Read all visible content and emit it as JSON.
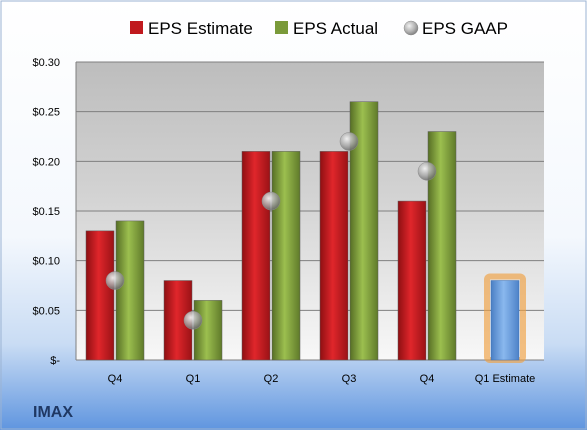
{
  "chart_data": {
    "type": "bar",
    "title": "",
    "xlabel": "",
    "ylabel": "",
    "categories": [
      "Q4",
      "Q1",
      "Q2",
      "Q3",
      "Q4",
      "Q1 Estimate"
    ],
    "series": [
      {
        "name": "EPS Estimate",
        "type": "bar",
        "color": "#c0191e",
        "values": [
          0.13,
          0.08,
          0.21,
          0.21,
          0.16,
          null
        ]
      },
      {
        "name": "EPS Actual",
        "type": "bar",
        "color": "#7a9a3a",
        "values": [
          0.14,
          0.06,
          0.21,
          0.26,
          0.23,
          null
        ]
      },
      {
        "name": "EPS GAAP",
        "type": "scatter",
        "color": "#b8b8b8",
        "values": [
          0.08,
          0.04,
          0.16,
          0.22,
          0.19,
          null
        ]
      },
      {
        "name": "",
        "type": "bar",
        "color": "#6fa0dc",
        "values": [
          null,
          null,
          null,
          null,
          null,
          0.08
        ]
      }
    ],
    "ylim": [
      0,
      0.3
    ],
    "yticks": [
      0,
      0.05,
      0.1,
      0.15,
      0.2,
      0.25,
      0.3
    ],
    "ytick_labels": [
      "$-",
      "$0.05",
      "$0.10",
      "$0.15",
      "$0.20",
      "$0.25",
      "$0.30"
    ],
    "grid": true,
    "legend_position": "top"
  },
  "company": "IMAX"
}
